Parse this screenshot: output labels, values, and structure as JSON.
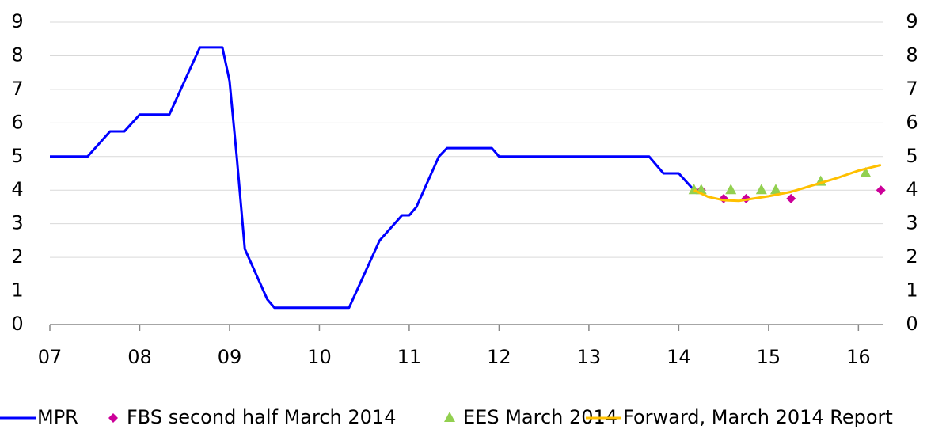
{
  "chart_data": {
    "type": "line",
    "xlim": [
      2007,
      2016.27
    ],
    "xticks": [
      {
        "value": 2007,
        "label": "07"
      },
      {
        "value": 2008,
        "label": "08"
      },
      {
        "value": 2009,
        "label": "09"
      },
      {
        "value": 2010,
        "label": "10"
      },
      {
        "value": 2011,
        "label": "11"
      },
      {
        "value": 2012,
        "label": "12"
      },
      {
        "value": 2013,
        "label": "13"
      },
      {
        "value": 2014,
        "label": "14"
      },
      {
        "value": 2015,
        "label": "15"
      },
      {
        "value": 2016,
        "label": "16"
      }
    ],
    "ylim": [
      0,
      9
    ],
    "yticks": [
      0,
      1,
      2,
      3,
      4,
      5,
      6,
      7,
      8,
      9
    ],
    "y2lim": [
      0,
      9
    ],
    "y2ticks": [
      0,
      1,
      2,
      3,
      4,
      5,
      6,
      7,
      8,
      9
    ],
    "grid": true,
    "legend": "bottom",
    "series": [
      {
        "name": "MPR",
        "color": "#0000ff",
        "marker": "line",
        "x": [
          2007,
          2007.42,
          2007.67,
          2007.83,
          2008,
          2008.33,
          2008.5,
          2008.67,
          2008.92,
          2009,
          2009.08,
          2009.17,
          2009.42,
          2009.5,
          2010.33,
          2010.5,
          2010.67,
          2010.92,
          2011,
          2011.08,
          2011.33,
          2011.42,
          2011.92,
          2012,
          2013.67,
          2013.83,
          2014,
          2014.17
        ],
        "values": [
          5,
          5,
          5.75,
          5.75,
          6.25,
          6.25,
          7.25,
          8.25,
          8.25,
          7.25,
          5,
          2.25,
          0.75,
          0.5,
          0.5,
          1.5,
          2.5,
          3.25,
          3.25,
          3.5,
          5,
          5.25,
          5.25,
          5,
          5,
          4.5,
          4.5,
          4
        ]
      },
      {
        "name": "FBS second half March 2014",
        "color": "#cc0099",
        "marker": "diamond",
        "x": [
          2014.25,
          2014.5,
          2014.75,
          2015.25,
          2016.25
        ],
        "values": [
          4,
          3.75,
          3.75,
          3.75,
          4
        ]
      },
      {
        "name": "EES March 2014",
        "color": "#92d050",
        "marker": "triangle",
        "x": [
          2014.17,
          2014.25,
          2014.58,
          2014.92,
          2015.08,
          2015.58,
          2016.08
        ],
        "values": [
          4,
          4,
          4,
          4,
          4,
          4.25,
          4.5
        ]
      },
      {
        "name": "Forward, March 2014 Report",
        "color": "#ffc000",
        "marker": "line",
        "x": [
          2014.17,
          2014.33,
          2014.5,
          2014.67,
          2014.83,
          2015,
          2015.25,
          2015.5,
          2015.75,
          2016,
          2016.25
        ],
        "values": [
          4,
          3.8,
          3.7,
          3.68,
          3.75,
          3.82,
          3.95,
          4.15,
          4.35,
          4.58,
          4.75
        ]
      }
    ]
  }
}
